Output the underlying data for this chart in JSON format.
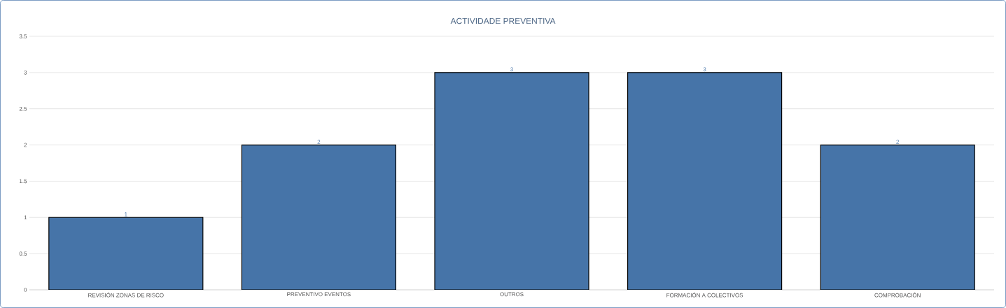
{
  "chart_data": {
    "type": "bar",
    "title": "ACTIVIDADE PREVENTIVA",
    "categories": [
      "REVISIÓN ZONAS DE RISCO",
      "PREVENTIVO EVENTOS",
      "OUTROS",
      "FORMACIÓN A COLECTIVOS",
      "COMPROBACIÓN"
    ],
    "values": [
      1,
      2,
      3,
      3,
      2
    ],
    "color": "#4674a8",
    "ylim": [
      0,
      3.5
    ],
    "yticks": [
      0,
      0.5,
      1,
      1.5,
      2,
      2.5,
      3,
      3.5
    ],
    "grid": "y",
    "data_labels": true
  }
}
